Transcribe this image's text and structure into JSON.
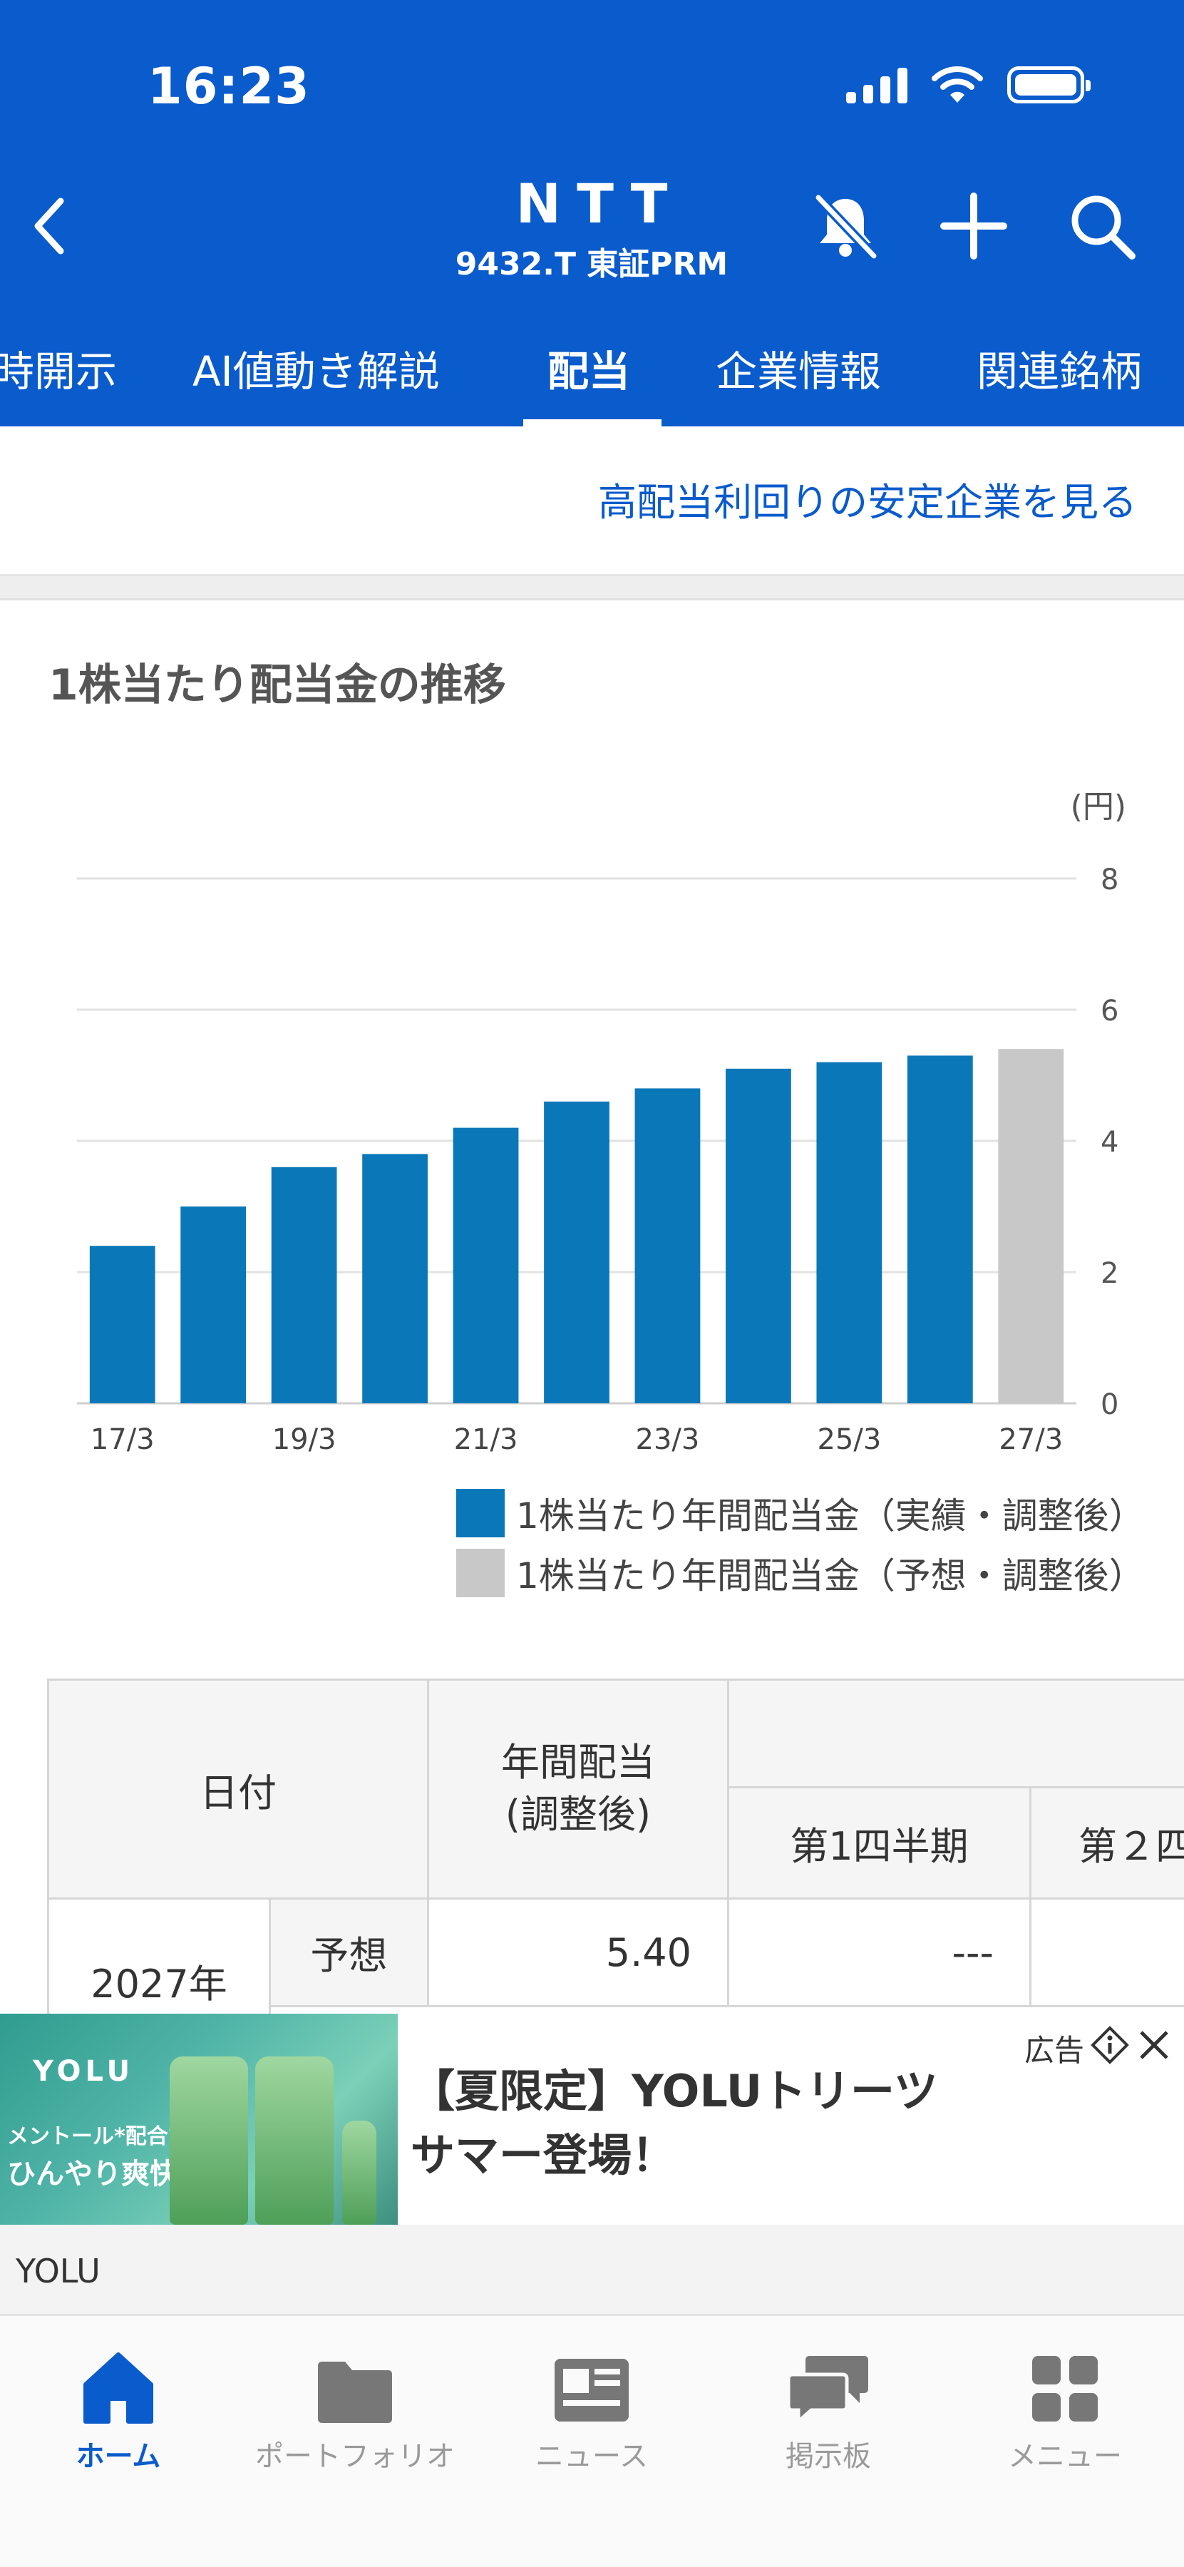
{
  "status_bar": {
    "time": "16:23"
  },
  "header": {
    "company": "NTT",
    "ticker": "9432.T 東証PRM"
  },
  "tabs": [
    {
      "label": "時開示"
    },
    {
      "label": "AI値動き解説"
    },
    {
      "label": "配当",
      "active": true
    },
    {
      "label": "企業情報"
    },
    {
      "label": "関連銘柄"
    }
  ],
  "link_text": "高配当利回りの安定企業を見る",
  "section_title": "1株当たり配当金の推移",
  "chart_data": {
    "type": "bar",
    "unit_label": "(円)",
    "categories": [
      "17/3",
      "18/3",
      "19/3",
      "20/3",
      "21/3",
      "22/3",
      "23/3",
      "24/3",
      "25/3",
      "26/3",
      "27/3"
    ],
    "tick_labels": [
      "17/3",
      "19/3",
      "21/3",
      "23/3",
      "25/3",
      "27/3"
    ],
    "values": [
      2.4,
      3.0,
      3.6,
      3.8,
      4.2,
      4.6,
      4.8,
      5.1,
      5.2,
      5.3,
      5.4
    ],
    "forecast_flags": [
      false,
      false,
      false,
      false,
      false,
      false,
      false,
      false,
      false,
      false,
      true
    ],
    "ylim": [
      0,
      8
    ],
    "yticks": [
      0,
      2,
      4,
      6,
      8
    ],
    "grid": true,
    "colors": {
      "actual": "#0a78b8",
      "forecast": "#c8c8c8",
      "grid": "#e2e2e2"
    },
    "legend": [
      {
        "label": "1株当たり年間配当金（実績・調整後）",
        "color": "#0a78b8"
      },
      {
        "label": "1株当たり年間配当金（予想・調整後）",
        "color": "#c8c8c8"
      }
    ]
  },
  "table": {
    "col_date": "日付",
    "col_annual": "年間配当\n(調整後)",
    "col_q1": "第1四半期",
    "col_q2": "第２四",
    "rows": [
      {
        "year": "2027年",
        "type": "予想",
        "annual": "5.40",
        "q1": "---"
      }
    ]
  },
  "ad": {
    "image_brand": "YOLU",
    "image_copy_1": "メントール*配合で",
    "image_copy_2": "ひんやり爽快",
    "title_line1": "【夏限定】YOLUトリーツ",
    "title_line2": "サマー登場！",
    "ad_label": "広告",
    "brand": "YOLU"
  },
  "bottom_nav": [
    {
      "label": "ホーム",
      "icon": "home-icon",
      "active": true
    },
    {
      "label": "ポートフォリオ",
      "icon": "folder-icon"
    },
    {
      "label": "ニュース",
      "icon": "news-icon"
    },
    {
      "label": "掲示板",
      "icon": "chat-icon"
    },
    {
      "label": "メニュー",
      "icon": "grid-icon"
    }
  ]
}
